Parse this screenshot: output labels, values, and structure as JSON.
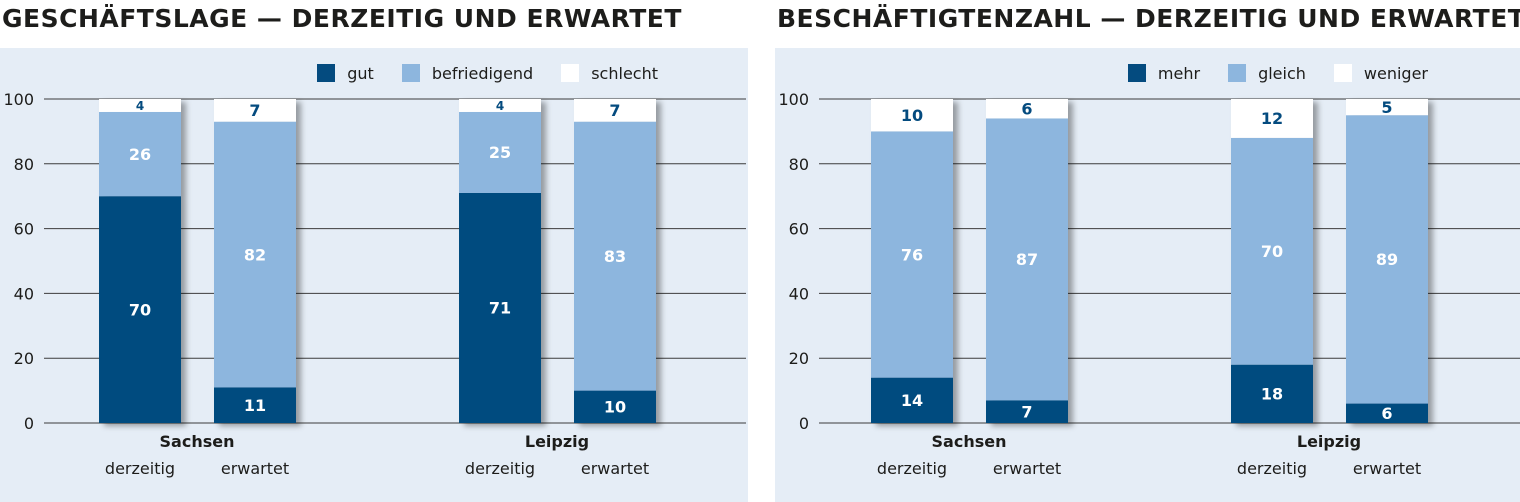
{
  "colors": {
    "dark": "#044b7f",
    "light": "#8db6de",
    "white": "#ffffff",
    "panel": "#e5edf6",
    "grid": "#3c3c3c",
    "label_dark": "#044b7f"
  },
  "chart_data": [
    {
      "type": "bar",
      "stacked": true,
      "title": "GESCHÄFTSLAGE — DERZEITIG UND ERWARTET",
      "ylim": [
        0,
        100
      ],
      "yticks": [
        "0",
        "20",
        "40",
        "60",
        "80",
        "100"
      ],
      "legend_placement": "top-right",
      "groups": [
        {
          "name": "Sachsen",
          "categories": [
            "derzeitig",
            "erwartet"
          ]
        },
        {
          "name": "Leipzig",
          "categories": [
            "derzeitig",
            "erwartet"
          ]
        }
      ],
      "series": [
        {
          "name": "gut",
          "color": "#044b7f",
          "values": [
            70,
            11,
            71,
            10
          ],
          "labels": [
            "70",
            "11",
            "71",
            "10"
          ]
        },
        {
          "name": "befriedigend",
          "color": "#8db6de",
          "values": [
            26,
            82,
            25,
            83
          ],
          "labels": [
            "26",
            "82",
            "25",
            "83"
          ]
        },
        {
          "name": "schlecht",
          "color": "#ffffff",
          "values": [
            4,
            7,
            4,
            7
          ],
          "labels": [
            "4",
            "7",
            "4",
            "7"
          ]
        }
      ]
    },
    {
      "type": "bar",
      "stacked": true,
      "title": "BESCHÄFTIGTENZAHL — DERZEITIG UND ERWARTET",
      "ylim": [
        0,
        100
      ],
      "yticks": [
        "0",
        "20",
        "40",
        "60",
        "80",
        "100"
      ],
      "legend_placement": "top-right",
      "groups": [
        {
          "name": "Sachsen",
          "categories": [
            "derzeitig",
            "erwartet"
          ]
        },
        {
          "name": "Leipzig",
          "categories": [
            "derzeitig",
            "erwartet"
          ]
        }
      ],
      "series": [
        {
          "name": "mehr",
          "color": "#044b7f",
          "values": [
            14,
            7,
            18,
            6
          ],
          "labels": [
            "14",
            "7",
            "18",
            "6"
          ]
        },
        {
          "name": "gleich",
          "color": "#8db6de",
          "values": [
            76,
            87,
            70,
            89
          ],
          "labels": [
            "76",
            "87",
            "70",
            "89"
          ]
        },
        {
          "name": "weniger",
          "color": "#ffffff",
          "values": [
            10,
            6,
            12,
            5
          ],
          "labels": [
            "10",
            "6",
            "12",
            "5"
          ]
        }
      ]
    }
  ]
}
